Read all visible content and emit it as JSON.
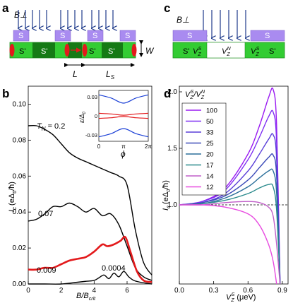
{
  "panel_labels": {
    "a": "a",
    "b": "b",
    "c": "c",
    "d": "d"
  },
  "panel_a": {
    "field_label": "B⊥",
    "superconductor_label": "S",
    "segment_label": "S'",
    "width_label": "W",
    "length_label": "L",
    "spacing_label": "L",
    "spacing_sub": "S"
  },
  "panel_c": {
    "field_label": "B⊥",
    "superconductor_label": "S",
    "left_label": "S'",
    "vzs_left": "V",
    "vzs_left_sub": "Z",
    "vzs_left_sup": "S",
    "vzn": "V",
    "vzn_sub": "Z",
    "vzn_sup": "N",
    "vzs_right": "V",
    "vzs_right_sub": "Z",
    "vzs_right_sup": "S",
    "right_label": "S'"
  },
  "colors": {
    "superconductor": "#a98bf0",
    "wire": "#33cc33",
    "wire_dark": "#157a15",
    "red": "#e31a1c",
    "arrow_blue": "#1e3a8a"
  },
  "chart_data": [
    {
      "type": "line",
      "panel": "b",
      "xlabel": "B/B",
      "xlabel_sub": "crit",
      "ylabel": "I",
      "ylabel_sub": "c",
      "ylabel_unit": "(eΔ",
      "ylabel_unit_sub": "0",
      "ylabel_unit_tail": "/ħ)",
      "xlim": [
        0,
        7.5
      ],
      "ylim": [
        0,
        0.11
      ],
      "x_ticks": [
        "0",
        "2",
        "4",
        "6"
      ],
      "y_ticks": [
        "0.00",
        "0.02",
        "0.04",
        "0.06",
        "0.08",
        "0.10"
      ],
      "series": [
        {
          "name": "T",
          "name_sub": "N",
          "name_suffix": " = 0.2",
          "color": "#000000",
          "x": [
            0,
            0.5,
            1,
            1.5,
            2,
            2.5,
            3,
            3.5,
            4,
            4.5,
            5,
            5.5,
            6,
            6.5,
            7,
            7.5
          ],
          "y": [
            0.088,
            0.088,
            0.086,
            0.083,
            0.078,
            0.073,
            0.07,
            0.068,
            0.066,
            0.064,
            0.062,
            0.06,
            0.055,
            0.03,
            0.012,
            0.005
          ]
        },
        {
          "name": "0.07",
          "color": "#000000",
          "x": [
            0,
            0.5,
            1,
            1.5,
            2,
            2.5,
            3,
            3.5,
            4,
            4.5,
            5,
            5.5,
            6,
            6.5,
            7,
            7.5
          ],
          "y": [
            0.035,
            0.036,
            0.039,
            0.043,
            0.043,
            0.045,
            0.043,
            0.04,
            0.042,
            0.038,
            0.039,
            0.033,
            0.021,
            0.009,
            0.004,
            0.002
          ]
        },
        {
          "name": "0.009",
          "color": "#e31a1c",
          "x": [
            0,
            0.5,
            1,
            1.5,
            2,
            2.5,
            3,
            3.5,
            4,
            4.5,
            4.8,
            5.2,
            5.6,
            5.9,
            6.2,
            6.6,
            7,
            7.5
          ],
          "y": [
            0.008,
            0.008,
            0.009,
            0.009,
            0.011,
            0.013,
            0.014,
            0.015,
            0.018,
            0.022,
            0.021,
            0.022,
            0.024,
            0.026,
            0.018,
            0.007,
            0.002,
            0.001
          ]
        },
        {
          "name": "0.0004",
          "color": "#000000",
          "x": [
            0,
            1,
            2,
            3,
            3.5,
            4,
            4.3,
            4.6,
            4.9,
            5.2,
            5.5,
            5.8,
            6.1,
            6.4,
            6.8,
            7.5
          ],
          "y": [
            0,
            0,
            0,
            0.001,
            0.0015,
            0.002,
            0.0035,
            0.005,
            0.003,
            0.006,
            0.004,
            0.007,
            0.004,
            0.002,
            0.001,
            0
          ]
        }
      ],
      "inset": {
        "type": "line",
        "xlabel": "ϕ",
        "ylabel": "ε/Δ",
        "ylabel_sub": "0",
        "x_ticks": [
          "0",
          "π",
          "2π"
        ],
        "y_ticks": [
          "0.03",
          "0",
          "-0.03"
        ],
        "ylim": [
          -0.04,
          0.04
        ],
        "series": [
          {
            "color": "#1a3fd6",
            "x": [
              0,
              1.57,
              3.14,
              4.71,
              6.28
            ],
            "y": [
              0.033,
              0.028,
              0.02,
              0.028,
              0.033
            ]
          },
          {
            "color": "#e31a1c",
            "x": [
              0,
              1.57,
              3.14,
              4.71,
              6.28
            ],
            "y": [
              0.004,
              0.003,
              0.001,
              0.003,
              0.004
            ]
          },
          {
            "color": "#e31a1c",
            "x": [
              0,
              1.57,
              3.14,
              4.71,
              6.28
            ],
            "y": [
              -0.004,
              -0.003,
              -0.001,
              -0.003,
              -0.004
            ]
          },
          {
            "color": "#1a3fd6",
            "x": [
              0,
              1.57,
              3.14,
              4.71,
              6.28
            ],
            "y": [
              -0.033,
              -0.028,
              -0.02,
              -0.028,
              -0.033
            ]
          }
        ]
      }
    },
    {
      "type": "line",
      "panel": "d",
      "xlabel": "V",
      "xlabel_sub": "Z",
      "xlabel_sup": "S",
      "xlabel_unit": " (μeV)",
      "ylabel": "I",
      "ylabel_sub": "c",
      "ylabel_unit": "(eΔ",
      "ylabel_unit_sub": "0",
      "ylabel_unit_tail": "/ħ)",
      "xlim": [
        0,
        0.95
      ],
      "ylim": [
        0.3,
        2.05
      ],
      "x_ticks": [
        "0.0",
        "0.3",
        "0.6",
        "0.9"
      ],
      "y_ticks": [
        "1.0",
        "1.5",
        "2.0"
      ],
      "reference_line": 1.0,
      "legend_title_parts": [
        "V",
        "Z",
        "S",
        "/V",
        "Z",
        "N"
      ],
      "series": [
        {
          "name": "100",
          "color": "#9a1bf2",
          "x": [
            0,
            0.2,
            0.4,
            0.6,
            0.7,
            0.78,
            0.82,
            0.85,
            0.88
          ],
          "y": [
            1.0,
            1.03,
            1.15,
            1.45,
            1.7,
            1.95,
            2.02,
            1.7,
            0.3
          ]
        },
        {
          "name": "50",
          "color": "#7e2ff2",
          "x": [
            0,
            0.2,
            0.4,
            0.6,
            0.7,
            0.78,
            0.82,
            0.85,
            0.88
          ],
          "y": [
            1.0,
            1.03,
            1.13,
            1.4,
            1.6,
            1.78,
            1.82,
            1.55,
            0.3
          ]
        },
        {
          "name": "33",
          "color": "#5a3fd8",
          "x": [
            0,
            0.2,
            0.4,
            0.6,
            0.7,
            0.78,
            0.82,
            0.85,
            0.88
          ],
          "y": [
            1.0,
            1.02,
            1.1,
            1.3,
            1.45,
            1.58,
            1.62,
            1.4,
            0.3
          ]
        },
        {
          "name": "25",
          "color": "#3c4bb8",
          "x": [
            0,
            0.2,
            0.4,
            0.6,
            0.7,
            0.78,
            0.82,
            0.85,
            0.88
          ],
          "y": [
            1.0,
            1.02,
            1.08,
            1.22,
            1.33,
            1.42,
            1.44,
            1.25,
            0.3
          ]
        },
        {
          "name": "20",
          "color": "#2b6f9a",
          "x": [
            0,
            0.2,
            0.4,
            0.6,
            0.7,
            0.78,
            0.82,
            0.85,
            0.88
          ],
          "y": [
            1.0,
            1.01,
            1.06,
            1.16,
            1.24,
            1.3,
            1.3,
            1.1,
            0.3
          ]
        },
        {
          "name": "17",
          "color": "#2a8a8c",
          "x": [
            0,
            0.2,
            0.4,
            0.6,
            0.7,
            0.78,
            0.82,
            0.85,
            0.88
          ],
          "y": [
            1.0,
            1.01,
            1.04,
            1.1,
            1.15,
            1.18,
            1.16,
            0.95,
            0.3
          ]
        },
        {
          "name": "14",
          "color": "#c05ec8",
          "x": [
            0,
            0.2,
            0.4,
            0.6,
            0.7,
            0.78,
            0.82,
            0.85,
            0.88
          ],
          "y": [
            1.0,
            1.0,
            1.02,
            1.03,
            1.02,
            0.98,
            0.9,
            0.65,
            0.3
          ]
        },
        {
          "name": "12",
          "color": "#e84be0",
          "x": [
            0,
            0.2,
            0.4,
            0.6,
            0.7,
            0.78,
            0.82,
            0.85
          ],
          "y": [
            1.0,
            1.0,
            0.98,
            0.92,
            0.82,
            0.65,
            0.5,
            0.3
          ]
        }
      ]
    }
  ]
}
